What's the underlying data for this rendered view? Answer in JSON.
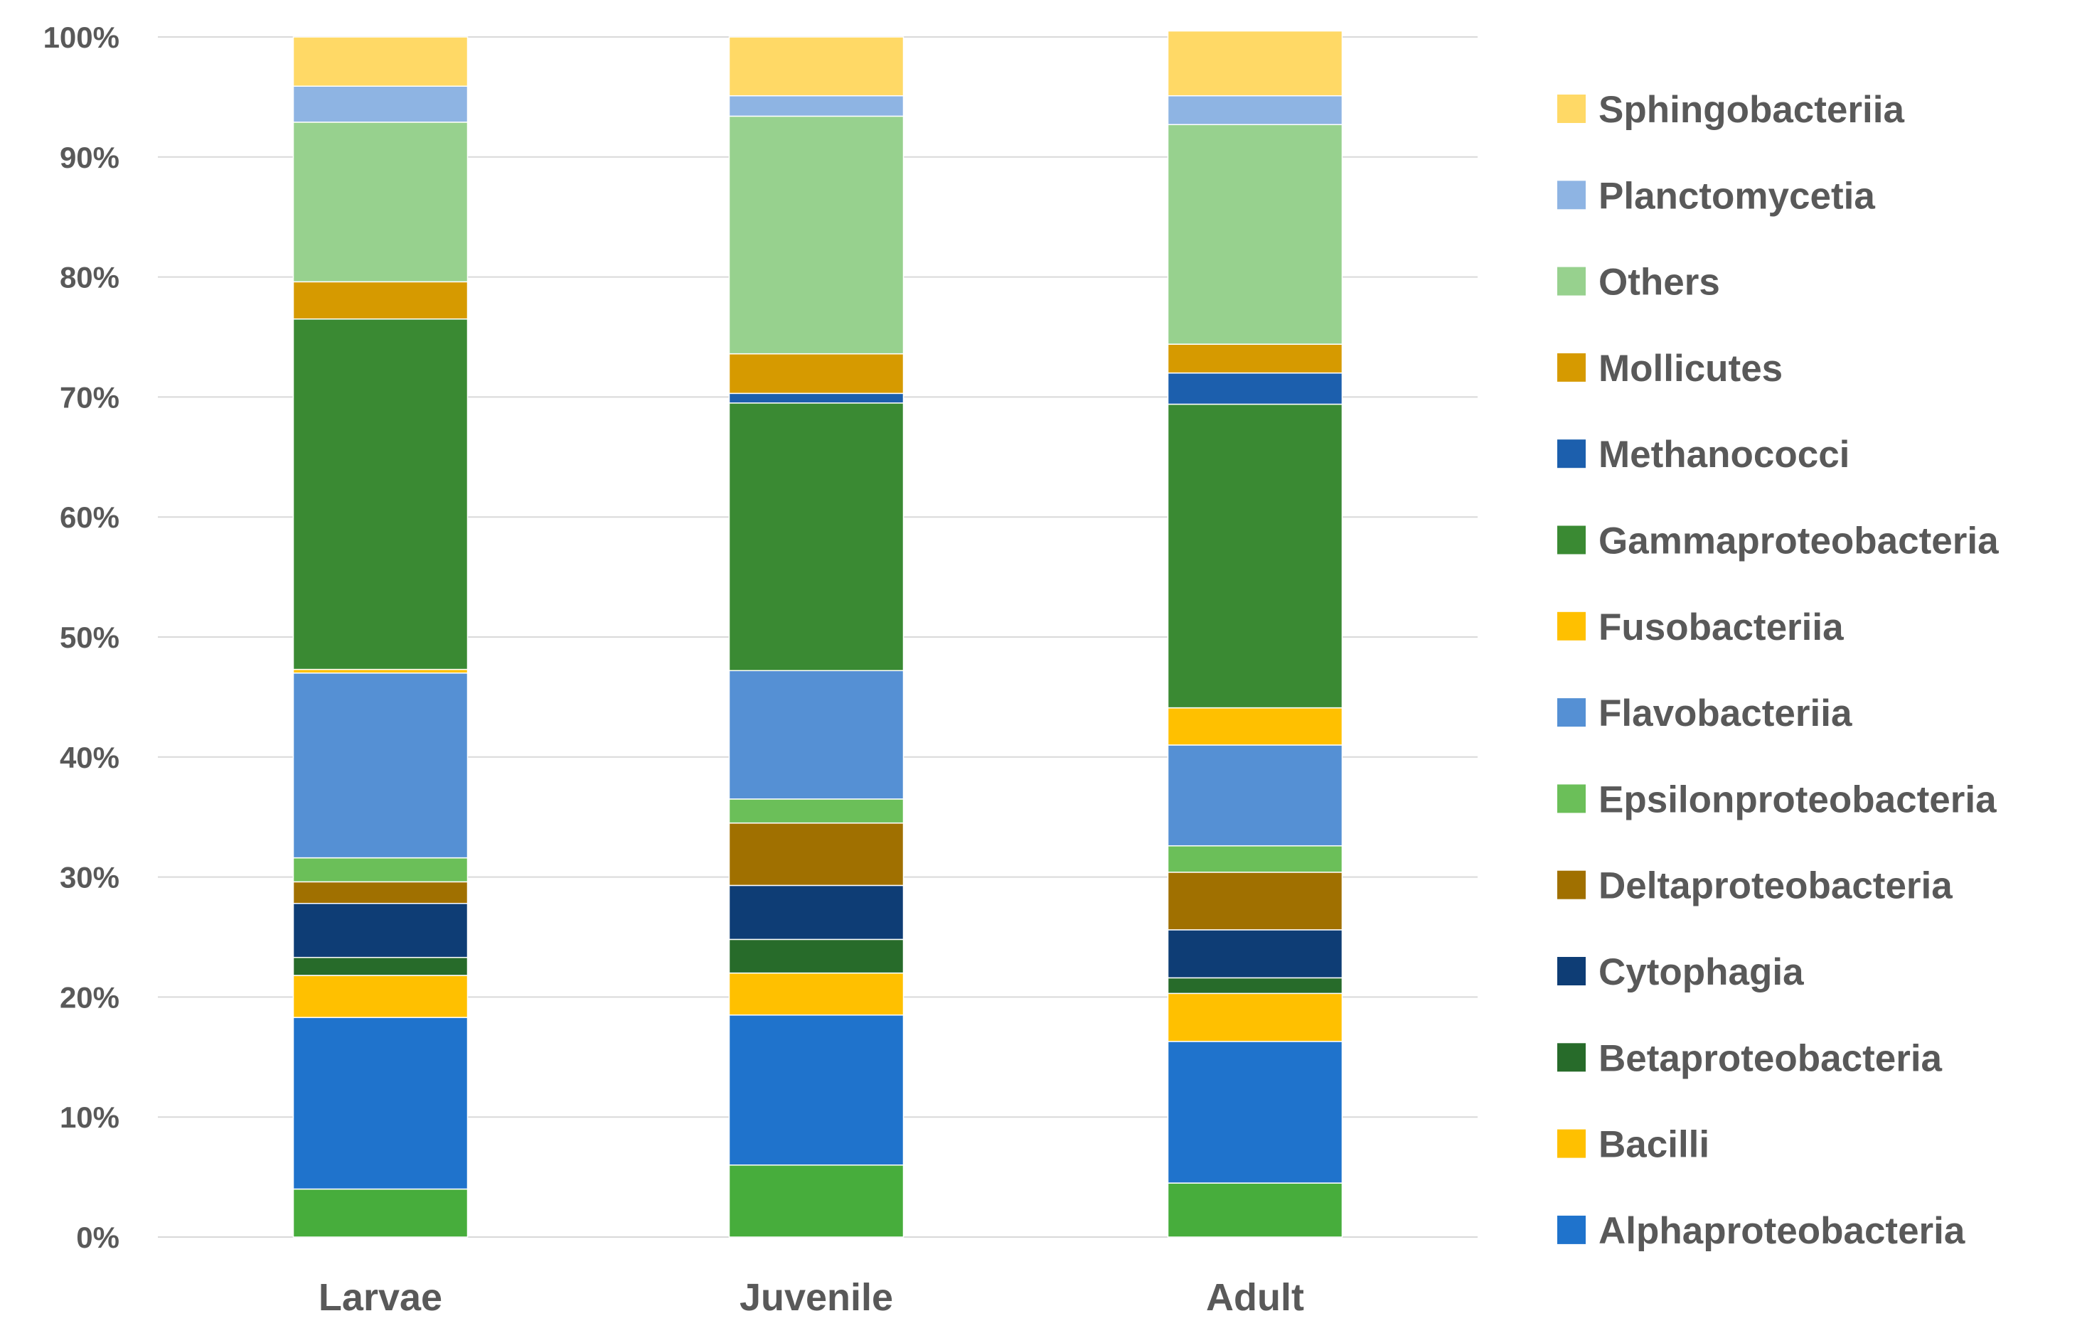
{
  "chart_data": {
    "type": "bar",
    "stacked": true,
    "percent": true,
    "title": "",
    "xlabel": "",
    "ylabel": "",
    "ylim": [
      0,
      100
    ],
    "grid": true,
    "legend_position": "right",
    "yticks": [
      "0%",
      "10%",
      "20%",
      "30%",
      "40%",
      "50%",
      "60%",
      "70%",
      "80%",
      "90%",
      "100%"
    ],
    "categories": [
      "Larvae",
      "Juvenile",
      "Adult"
    ],
    "series": [
      {
        "name": "Epsilonproteobacteria",
        "color": "#47ad3c",
        "values": [
          4.0,
          6.0,
          4.5
        ],
        "in_legend": false
      },
      {
        "name": "Alphaproteobacteria",
        "color": "#1f73cc",
        "values": [
          14.3,
          12.5,
          11.8
        ]
      },
      {
        "name": "Bacilli",
        "color": "#ffc000",
        "values": [
          3.5,
          3.5,
          4.0
        ]
      },
      {
        "name": "Betaproteobacteria",
        "color": "#276b2a",
        "values": [
          1.5,
          2.8,
          1.3
        ]
      },
      {
        "name": "Cytophagia",
        "color": "#0e3d75",
        "values": [
          4.5,
          4.5,
          4.0
        ]
      },
      {
        "name": "Deltaproteobacteria",
        "color": "#a07000",
        "values": [
          1.8,
          5.2,
          4.8
        ]
      },
      {
        "name": "Epsilonproteobacteria",
        "color": "#6bbf59",
        "values": [
          2.0,
          2.0,
          2.2
        ]
      },
      {
        "name": "Flavobacteriia",
        "color": "#5590d4",
        "values": [
          15.4,
          10.7,
          8.4
        ]
      },
      {
        "name": "Fusobacteriia",
        "color": "#ffc000",
        "values": [
          0.3,
          0.0,
          3.1
        ]
      },
      {
        "name": "Gammaproteobacteria",
        "color": "#3a8a33",
        "values": [
          29.2,
          22.3,
          25.3
        ]
      },
      {
        "name": "Methanococci",
        "color": "#1c5fad",
        "values": [
          0.0,
          0.8,
          2.6
        ]
      },
      {
        "name": "Mollicutes",
        "color": "#d69a00",
        "values": [
          3.1,
          3.3,
          2.4
        ]
      },
      {
        "name": "Others",
        "color": "#97d18e",
        "values": [
          13.3,
          19.8,
          18.3
        ]
      },
      {
        "name": "Planctomycetia",
        "color": "#8eb4e3",
        "values": [
          3.0,
          1.7,
          2.4
        ]
      },
      {
        "name": "Sphingobacteriia",
        "color": "#ffd966",
        "values": [
          4.1,
          4.9,
          5.4
        ]
      }
    ],
    "legend": [
      {
        "name": "Sphingobacteriia",
        "color": "#ffd966"
      },
      {
        "name": "Planctomycetia",
        "color": "#8eb4e3"
      },
      {
        "name": "Others",
        "color": "#97d18e"
      },
      {
        "name": "Mollicutes",
        "color": "#d69a00"
      },
      {
        "name": "Methanococci",
        "color": "#1c5fad"
      },
      {
        "name": "Gammaproteobacteria",
        "color": "#3a8a33"
      },
      {
        "name": "Fusobacteriia",
        "color": "#ffc000"
      },
      {
        "name": "Flavobacteriia",
        "color": "#5590d4"
      },
      {
        "name": "Epsilonproteobacteria",
        "color": "#6bbf59"
      },
      {
        "name": "Deltaproteobacteria",
        "color": "#a07000"
      },
      {
        "name": "Cytophagia",
        "color": "#0e3d75"
      },
      {
        "name": "Betaproteobacteria",
        "color": "#276b2a"
      },
      {
        "name": "Bacilli",
        "color": "#ffc000"
      },
      {
        "name": "Alphaproteobacteria",
        "color": "#1f73cc"
      }
    ]
  }
}
